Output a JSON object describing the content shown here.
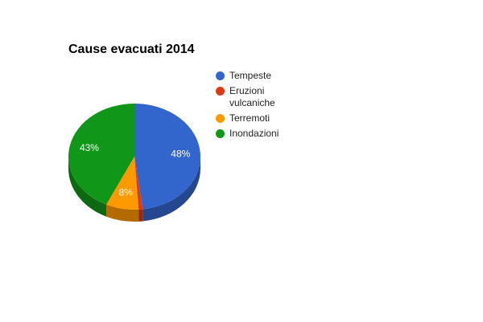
{
  "chart_data": {
    "type": "pie3d",
    "title": "Cause evacuati 2014",
    "categories": [
      "Tempeste",
      "Eruzioni vulcaniche",
      "Terremoti",
      "Inondazioni"
    ],
    "values": [
      48,
      1,
      8,
      43
    ],
    "value_labels": [
      "48%",
      null,
      "8%",
      "43%"
    ],
    "colors": [
      "#3366cc",
      "#dc3912",
      "#ff9900",
      "#109618"
    ],
    "legend": "right"
  }
}
